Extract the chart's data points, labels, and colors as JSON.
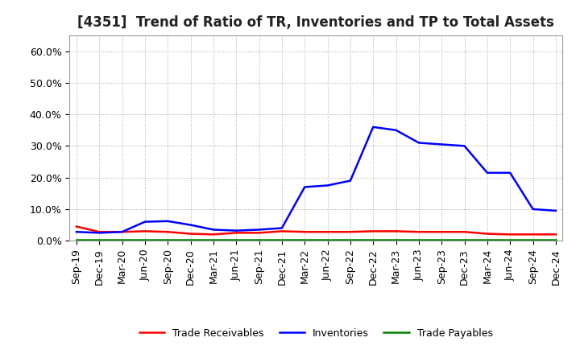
{
  "title": "[4351]  Trend of Ratio of TR, Inventories and TP to Total Assets",
  "labels": [
    "Sep-19",
    "Dec-19",
    "Mar-20",
    "Jun-20",
    "Sep-20",
    "Dec-20",
    "Mar-21",
    "Jun-21",
    "Sep-21",
    "Dec-21",
    "Mar-22",
    "Jun-22",
    "Sep-22",
    "Dec-22",
    "Mar-23",
    "Jun-23",
    "Sep-23",
    "Dec-23",
    "Mar-24",
    "Jun-24",
    "Sep-24",
    "Dec-24"
  ],
  "trade_receivables": [
    0.045,
    0.028,
    0.028,
    0.03,
    0.028,
    0.022,
    0.02,
    0.025,
    0.025,
    0.03,
    0.028,
    0.028,
    0.028,
    0.03,
    0.03,
    0.028,
    0.028,
    0.028,
    0.022,
    0.02,
    0.02,
    0.02
  ],
  "inventories": [
    0.028,
    0.025,
    0.028,
    0.06,
    0.062,
    0.05,
    0.035,
    0.032,
    0.035,
    0.04,
    0.17,
    0.175,
    0.19,
    0.36,
    0.35,
    0.31,
    0.305,
    0.3,
    0.215,
    0.215,
    0.1,
    0.095
  ],
  "trade_payables": [
    0.002,
    0.002,
    0.002,
    0.002,
    0.002,
    0.002,
    0.002,
    0.002,
    0.002,
    0.002,
    0.002,
    0.002,
    0.002,
    0.002,
    0.002,
    0.002,
    0.002,
    0.002,
    0.002,
    0.002,
    0.002,
    0.002
  ],
  "tr_color": "#ff0000",
  "inv_color": "#0000ff",
  "tp_color": "#008000",
  "ylim": [
    0.0,
    0.65
  ],
  "yticks": [
    0.0,
    0.1,
    0.2,
    0.3,
    0.4,
    0.5,
    0.6
  ],
  "bg_color": "#ffffff",
  "plot_bg_color": "#ffffff",
  "grid_color": "#aaaaaa",
  "legend_labels": [
    "Trade Receivables",
    "Inventories",
    "Trade Payables"
  ],
  "title_fontsize": 12,
  "tick_fontsize": 9,
  "legend_fontsize": 9,
  "linewidth": 1.8
}
